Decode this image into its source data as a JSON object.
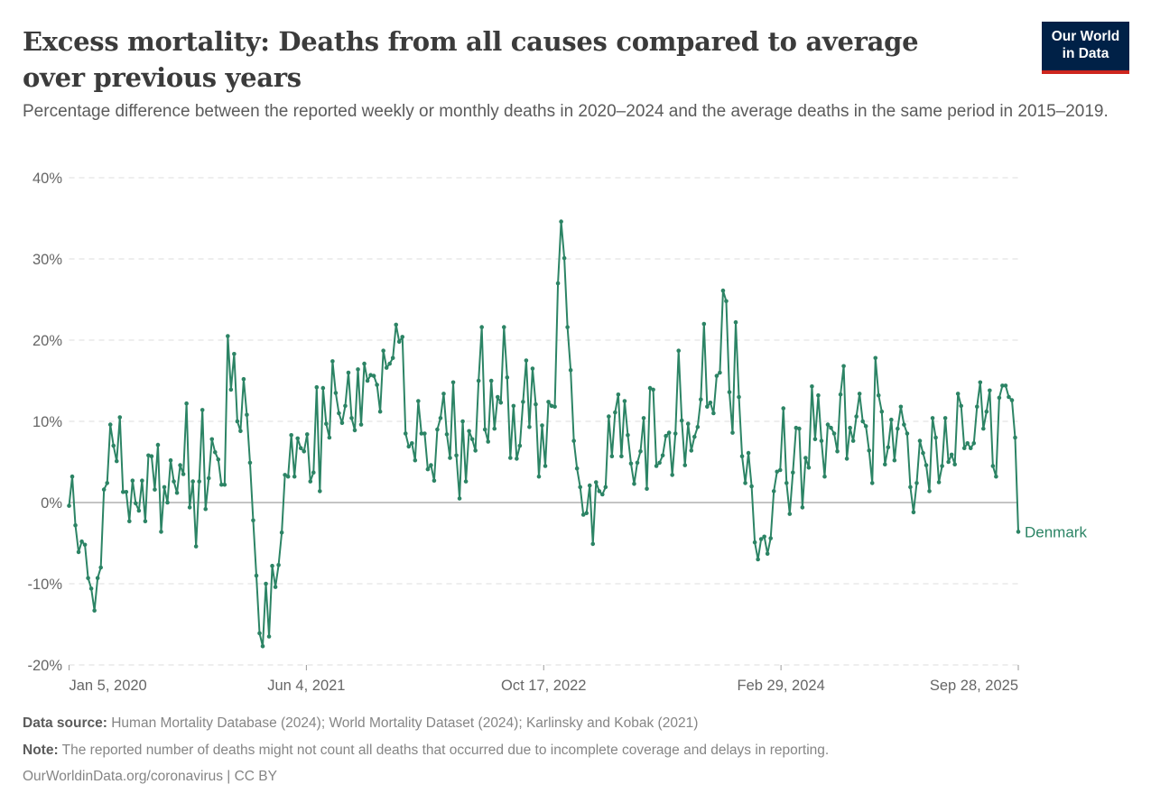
{
  "header": {
    "title": "Excess mortality: Deaths from all causes compared to average over previous years",
    "subtitle": "Percentage difference between the reported weekly or monthly deaths in 2020–2024 and the average deaths in the same period in 2015–2019.",
    "logo_line1": "Our World",
    "logo_line2": "in Data"
  },
  "colors": {
    "series": "#2c8465",
    "zero_line": "#a1a1a1",
    "grid": "#dddddd",
    "logo_bg": "#002147",
    "logo_accent": "#ce261e"
  },
  "footer": {
    "source_label": "Data source:",
    "source_text": "Human Mortality Database (2024); World Mortality Dataset (2024); Karlinsky and Kobak (2021)",
    "note_label": "Note:",
    "note_text": "The reported number of deaths might not count all deaths that occurred due to incomplete coverage and delays in reporting.",
    "credit": "OurWorldinData.org/coronavirus | CC BY"
  },
  "chart_data": {
    "type": "line",
    "title": "Excess mortality: Deaths from all causes compared to average over previous years",
    "xlabel": "",
    "ylabel": "",
    "x_start": "Jan 5, 2020",
    "x_end": "Sep 28, 2025",
    "x_interval": "weekly",
    "x_ticks": [
      "Jan 5, 2020",
      "Jun 4, 2021",
      "Oct 17, 2022",
      "Feb 29, 2024",
      "Sep 28, 2025"
    ],
    "y_ticks": [
      "-20%",
      "-10%",
      "0%",
      "10%",
      "20%",
      "30%",
      "40%"
    ],
    "ylim": [
      -20,
      40
    ],
    "grid": true,
    "legend": "end-of-line label (right)",
    "series": [
      {
        "name": "Denmark",
        "values": [
          -0.4,
          3.2,
          -2.8,
          -6.1,
          -4.8,
          -5.2,
          -9.3,
          -10.6,
          -13.3,
          -9.3,
          -8.0,
          1.6,
          2.4,
          9.6,
          7.0,
          5.1,
          10.5,
          1.3,
          1.3,
          -2.3,
          2.7,
          -0.1,
          -1.0,
          2.7,
          -2.3,
          5.8,
          5.7,
          1.6,
          7.1,
          -3.6,
          1.9,
          0.0,
          5.2,
          2.6,
          1.2,
          4.6,
          3.5,
          12.2,
          -0.6,
          2.6,
          -5.4,
          2.6,
          11.4,
          -0.8,
          3.0,
          7.8,
          6.2,
          5.3,
          2.2,
          2.2,
          20.5,
          13.9,
          18.3,
          10.0,
          8.8,
          15.2,
          10.8,
          4.9,
          -2.2,
          -9.0,
          -16.1,
          -17.7,
          -10.0,
          -16.5,
          -7.8,
          -10.4,
          -7.7,
          -3.7,
          3.4,
          3.2,
          8.3,
          3.2,
          7.9,
          6.7,
          6.3,
          8.4,
          2.6,
          3.7,
          14.2,
          1.4,
          14.1,
          9.7,
          8.0,
          17.4,
          13.5,
          11.0,
          9.8,
          11.9,
          16.0,
          10.4,
          8.9,
          16.4,
          9.6,
          17.1,
          15.0,
          15.7,
          15.6,
          14.5,
          11.2,
          18.7,
          16.6,
          17.1,
          17.8,
          21.9,
          19.8,
          20.4,
          8.5,
          6.9,
          7.3,
          5.2,
          12.5,
          8.5,
          8.5,
          4.1,
          4.6,
          2.7,
          9.0,
          10.4,
          13.4,
          8.4,
          5.5,
          14.8,
          5.8,
          0.5,
          10.0,
          2.6,
          8.8,
          7.8,
          6.4,
          15.0,
          21.6,
          9.0,
          7.5,
          15.0,
          9.1,
          13.0,
          12.3,
          21.6,
          15.4,
          5.5,
          11.9,
          5.4,
          7.0,
          12.4,
          17.5,
          9.3,
          16.5,
          12.1,
          3.2,
          9.5,
          4.5,
          12.4,
          11.9,
          11.8,
          27.0,
          34.6,
          30.1,
          21.6,
          16.3,
          7.6,
          4.2,
          1.9,
          -1.5,
          -1.3,
          2.1,
          -5.1,
          2.5,
          1.4,
          1.0,
          1.9,
          10.6,
          5.7,
          11.1,
          13.3,
          5.7,
          12.5,
          8.3,
          4.8,
          2.3,
          4.9,
          6.3,
          10.4,
          1.7,
          14.1,
          13.9,
          4.5,
          4.9,
          5.8,
          8.2,
          8.6,
          3.4,
          8.5,
          18.7,
          10.1,
          4.6,
          9.7,
          6.4,
          8.1,
          9.3,
          12.7,
          22.0,
          11.8,
          12.3,
          11.0,
          15.6,
          16.0,
          26.1,
          24.8,
          13.6,
          8.6,
          22.2,
          13.0,
          5.7,
          2.4,
          6.1,
          2.0,
          -4.9,
          -7.0,
          -4.5,
          -4.2,
          -6.3,
          -4.4,
          1.4,
          3.8,
          4.0,
          11.6,
          2.4,
          -1.4,
          3.7,
          9.2,
          9.1,
          -0.6,
          5.5,
          4.3,
          14.3,
          7.8,
          13.2,
          7.6,
          3.2,
          9.6,
          9.2,
          8.5,
          6.3,
          13.3,
          16.8,
          5.4,
          9.2,
          7.6,
          10.6,
          13.4,
          10.0,
          9.4,
          6.4,
          2.4,
          17.8,
          13.2,
          11.2,
          4.7,
          6.8,
          10.2,
          5.2,
          9.1,
          11.8,
          9.6,
          8.5,
          1.9,
          -1.2,
          2.4,
          7.6,
          6.1,
          4.6,
          1.4,
          10.4,
          8.0,
          2.5,
          4.5,
          10.4,
          5.0,
          5.9,
          4.7,
          13.4,
          11.9,
          6.7,
          7.3,
          6.7,
          7.3,
          11.8,
          14.8,
          9.1,
          11.2,
          13.8,
          4.5,
          3.2,
          12.9,
          14.4,
          14.4,
          13.0,
          12.6,
          8.0,
          -3.6
        ]
      }
    ]
  }
}
